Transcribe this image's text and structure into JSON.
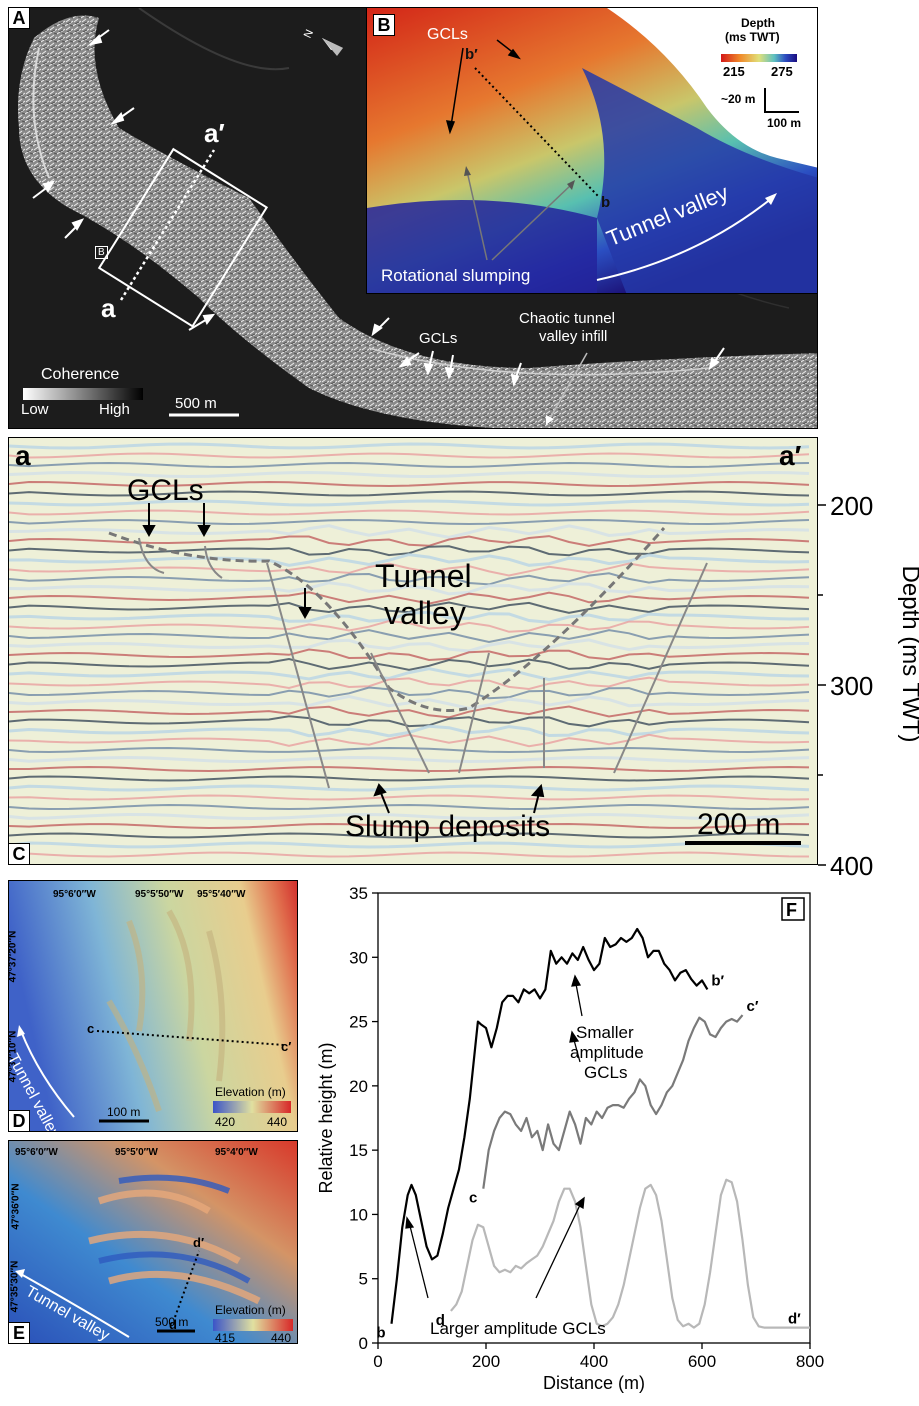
{
  "panelA": {
    "letter": "A",
    "section_start": "a",
    "section_end": "a′",
    "box_label": "B",
    "gcl_label": "GCLs",
    "infill_label_line1": "Chaotic tunnel",
    "infill_label_line2": "valley infill",
    "north_label": "N",
    "legend_title": "Coherence",
    "legend_low": "Low",
    "legend_high": "High",
    "scale_label": "500 m"
  },
  "panelB": {
    "letter": "B",
    "gcl_label": "GCLs",
    "profile_start": "b",
    "profile_end": "b′",
    "legend_title_line1": "Depth",
    "legend_title_line2": "(ms TWT)",
    "legend_min": "215",
    "legend_max": "275",
    "vertical_scale": "~20 m",
    "horizontal_scale": "100 m",
    "slump_label": "Rotational slumping",
    "valley_label": "Tunnel valley"
  },
  "panelC": {
    "letter": "C",
    "left_label": "a",
    "right_label": "a′",
    "gcl_label": "GCLs",
    "valley_line1": "Tunnel",
    "valley_line2": "valley",
    "slump_label": "Slump deposits",
    "scale_label": "200 m",
    "axis_label": "Depth (ms TWT)",
    "ticks": [
      "200",
      "300",
      "400"
    ]
  },
  "panelD": {
    "letter": "D",
    "lon_labels": [
      "95°6′0″W",
      "95°5′50″W",
      "95°5′40″W"
    ],
    "lat_labels": [
      "47°37′20″N",
      "47°37′10″N"
    ],
    "profile_start": "c",
    "profile_end": "c′",
    "valley_label": "Tunnel valley",
    "scale_label": "100 m",
    "legend_title": "Elevation (m)",
    "legend_min": "420",
    "legend_max": "440"
  },
  "panelE": {
    "letter": "E",
    "lon_labels": [
      "95°6′0″W",
      "95°5′0″W",
      "95°4′0″W"
    ],
    "lat_labels": [
      "47°36′0″N",
      "47°35′30″N"
    ],
    "profile_start": "d",
    "profile_end": "d′",
    "valley_label": "Tunnel valley",
    "scale_label": "500 m",
    "legend_title": "Elevation (m)",
    "legend_min": "415",
    "legend_max": "440"
  },
  "panelF": {
    "letter": "F",
    "annotation_small_line1": "Smaller",
    "annotation_small_line2": "amplitude",
    "annotation_small_line3": "GCLs",
    "annotation_large": "Larger amplitude GCLs"
  },
  "chart_data": {
    "type": "line",
    "xlabel": "Distance (m)",
    "ylabel": "Relative height (m)",
    "xlim": [
      0,
      800
    ],
    "ylim": [
      0,
      35
    ],
    "xticks": [
      0,
      200,
      400,
      600,
      800
    ],
    "yticks": [
      0,
      5,
      10,
      15,
      20,
      25,
      30,
      35
    ],
    "grid": false,
    "series": [
      {
        "name": "b",
        "end_label": "b′",
        "color": "#000000",
        "x": [
          25,
          35,
          45,
          55,
          62,
          70,
          80,
          90,
          100,
          110,
          120,
          130,
          140,
          150,
          160,
          170,
          180,
          185,
          190,
          200,
          210,
          220,
          230,
          240,
          250,
          260,
          270,
          280,
          290,
          300,
          310,
          320,
          330,
          340,
          350,
          360,
          370,
          380,
          390,
          400,
          410,
          420,
          430,
          440,
          450,
          460,
          470,
          480,
          490,
          500,
          510,
          520,
          530,
          540,
          550,
          560,
          570,
          580,
          590,
          600,
          610
        ],
        "y": [
          1.5,
          5,
          9,
          11.5,
          12.3,
          11.5,
          9.5,
          7.5,
          6.5,
          6.8,
          8.5,
          10.5,
          12,
          13.5,
          16,
          19,
          23,
          25,
          24.8,
          24.5,
          23,
          24.5,
          26.5,
          27,
          27,
          26.5,
          27.5,
          27.2,
          27.5,
          26.8,
          27.5,
          30.5,
          29.5,
          30,
          29.5,
          30.3,
          29.8,
          30.8,
          29.8,
          29,
          29.5,
          31.5,
          30.8,
          31,
          31.5,
          31.2,
          31.5,
          32.2,
          31.5,
          30,
          30.5,
          30.5,
          29.5,
          29,
          28.2,
          28.8,
          29,
          28.3,
          27.8,
          28.2,
          27.5
        ]
      },
      {
        "name": "c",
        "end_label": "c′",
        "color": "#7a7a7a",
        "x": [
          195,
          205,
          215,
          225,
          235,
          245,
          255,
          265,
          275,
          285,
          295,
          305,
          315,
          325,
          335,
          345,
          355,
          365,
          375,
          385,
          395,
          405,
          415,
          425,
          435,
          445,
          455,
          465,
          475,
          485,
          495,
          505,
          515,
          525,
          535,
          545,
          555,
          565,
          575,
          585,
          595,
          605,
          615,
          625,
          635,
          645,
          655,
          665,
          675
        ],
        "y": [
          12,
          15,
          16.5,
          17.5,
          18,
          17.8,
          17,
          16.5,
          17.5,
          16,
          16.5,
          15,
          17,
          15.5,
          15,
          16.5,
          18,
          17,
          15.5,
          17.5,
          17,
          18,
          17.5,
          18.3,
          18.5,
          18.5,
          18.3,
          19,
          19.5,
          20.5,
          20,
          18.5,
          17.8,
          18.5,
          19.5,
          20,
          21,
          22,
          23.5,
          24.5,
          25.3,
          25,
          24,
          23.8,
          24.5,
          25,
          25.2,
          25,
          25.5
        ]
      },
      {
        "name": "d",
        "end_label": "d′",
        "color": "#b8b8b8",
        "x": [
          135,
          145,
          155,
          165,
          175,
          185,
          195,
          205,
          215,
          225,
          235,
          245,
          255,
          265,
          275,
          285,
          295,
          305,
          315,
          325,
          335,
          345,
          355,
          365,
          375,
          385,
          395,
          405,
          415,
          425,
          435,
          445,
          455,
          465,
          475,
          485,
          495,
          505,
          515,
          525,
          535,
          545,
          555,
          565,
          575,
          585,
          595,
          605,
          615,
          625,
          635,
          645,
          655,
          665,
          675,
          685,
          695,
          705,
          715,
          725,
          760,
          800
        ],
        "y": [
          2.5,
          3,
          4,
          6,
          8,
          9.2,
          9,
          7.5,
          6,
          5.5,
          5.7,
          5.5,
          6,
          5.8,
          6.2,
          6.5,
          6.8,
          7.5,
          8.5,
          9.5,
          11,
          12,
          12,
          11,
          9,
          6,
          3,
          1.5,
          1.3,
          1.5,
          2,
          3,
          4.5,
          6.5,
          8.5,
          10.5,
          12,
          12.3,
          11.5,
          9.5,
          6.5,
          3.5,
          1.8,
          1.3,
          1.5,
          1.2,
          1.5,
          3,
          5.5,
          8.5,
          11.5,
          12.7,
          12.5,
          11,
          8,
          4.5,
          2,
          1.3,
          1.2,
          1.2,
          1.2,
          1.2
        ]
      }
    ]
  }
}
